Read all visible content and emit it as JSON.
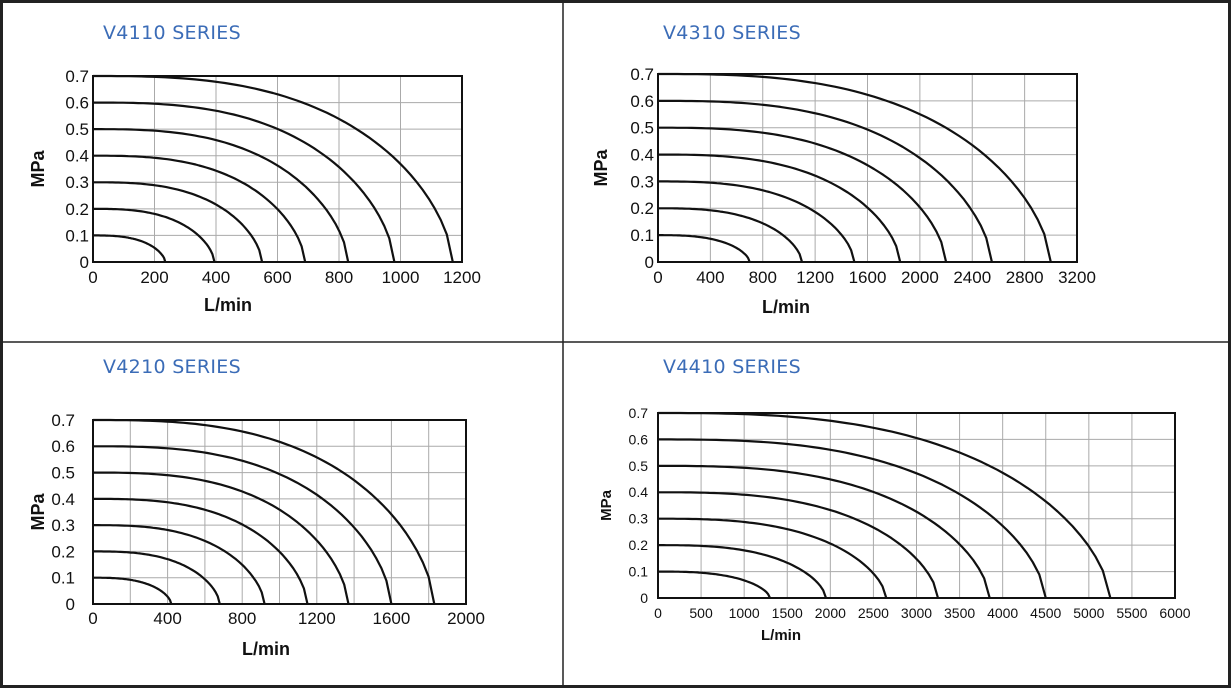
{
  "colors": {
    "border": "#222222",
    "title": "#3b6cb7",
    "grid": "#aaaaaa",
    "curve": "#111111"
  },
  "chart_data": [
    {
      "id": "v4110",
      "type": "line",
      "title": "V4110 SERIES",
      "xlabel": "L/min",
      "ylabel": "MPa",
      "xlim": [
        0,
        1200
      ],
      "ylim": [
        0,
        0.7
      ],
      "x_ticks": [
        0,
        200,
        400,
        600,
        800,
        1000,
        1200
      ],
      "y_ticks": [
        0,
        0.1,
        0.2,
        0.3,
        0.4,
        0.5,
        0.6,
        0.7
      ],
      "x_tick_labels": [
        "0",
        "200",
        "400",
        "600",
        "800",
        "1000",
        "1200"
      ],
      "y_tick_labels": [
        "0",
        "0.1",
        "0.2",
        "0.3",
        "0.4",
        "0.5",
        "0.6",
        "0.7"
      ],
      "grid": true,
      "series": [
        {
          "pressure": 0.1,
          "max_flow": 235
        },
        {
          "pressure": 0.2,
          "max_flow": 395
        },
        {
          "pressure": 0.3,
          "max_flow": 550
        },
        {
          "pressure": 0.4,
          "max_flow": 690
        },
        {
          "pressure": 0.5,
          "max_flow": 830
        },
        {
          "pressure": 0.6,
          "max_flow": 980
        },
        {
          "pressure": 0.7,
          "max_flow": 1170
        }
      ]
    },
    {
      "id": "v4310",
      "type": "line",
      "title": "V4310 SERIES",
      "xlabel": "L/min",
      "ylabel": "MPa",
      "xlim": [
        0,
        3200
      ],
      "ylim": [
        0,
        0.7
      ],
      "x_ticks": [
        0,
        400,
        800,
        1200,
        1600,
        2000,
        2400,
        2800,
        3200
      ],
      "y_ticks": [
        0,
        0.1,
        0.2,
        0.3,
        0.4,
        0.5,
        0.6,
        0.7
      ],
      "x_tick_labels": [
        "0",
        "400",
        "800",
        "1200",
        "1600",
        "2000",
        "2400",
        "2800",
        "3200"
      ],
      "y_tick_labels": [
        "0",
        "0.1",
        "0.2",
        "0.3",
        "0.4",
        "0.5",
        "0.6",
        "0.7"
      ],
      "grid": true,
      "series": [
        {
          "pressure": 0.1,
          "max_flow": 700
        },
        {
          "pressure": 0.2,
          "max_flow": 1100
        },
        {
          "pressure": 0.3,
          "max_flow": 1500
        },
        {
          "pressure": 0.4,
          "max_flow": 1850
        },
        {
          "pressure": 0.5,
          "max_flow": 2200
        },
        {
          "pressure": 0.6,
          "max_flow": 2550
        },
        {
          "pressure": 0.7,
          "max_flow": 3000
        }
      ]
    },
    {
      "id": "v4210",
      "type": "line",
      "title": "V4210 SERIES",
      "xlabel": "L/min",
      "ylabel": "MPa",
      "xlim": [
        0,
        2000
      ],
      "ylim": [
        0,
        0.7
      ],
      "x_ticks": [
        0,
        200,
        400,
        600,
        800,
        1000,
        1200,
        1400,
        1600,
        1800,
        2000
      ],
      "y_ticks": [
        0,
        0.1,
        0.2,
        0.3,
        0.4,
        0.5,
        0.6,
        0.7
      ],
      "x_tick_labels": [
        "0",
        "",
        "400",
        "",
        "800",
        "",
        "1200",
        "",
        "1600",
        "",
        "2000"
      ],
      "y_tick_labels": [
        "0",
        "0.1",
        "0.2",
        "0.3",
        "0.4",
        "0.5",
        "0.6",
        "0.7"
      ],
      "grid": true,
      "series": [
        {
          "pressure": 0.1,
          "max_flow": 420
        },
        {
          "pressure": 0.2,
          "max_flow": 680
        },
        {
          "pressure": 0.3,
          "max_flow": 920
        },
        {
          "pressure": 0.4,
          "max_flow": 1150
        },
        {
          "pressure": 0.5,
          "max_flow": 1370
        },
        {
          "pressure": 0.6,
          "max_flow": 1600
        },
        {
          "pressure": 0.7,
          "max_flow": 1830
        }
      ]
    },
    {
      "id": "v4410",
      "type": "line",
      "title": "V4410 SERIES",
      "xlabel": "L/min",
      "ylabel": "MPa",
      "xlim": [
        0,
        6000
      ],
      "ylim": [
        0,
        0.7
      ],
      "x_ticks": [
        0,
        500,
        1000,
        1500,
        2000,
        2500,
        3000,
        3500,
        4000,
        4500,
        5000,
        5500,
        6000
      ],
      "y_ticks": [
        0,
        0.1,
        0.2,
        0.3,
        0.4,
        0.5,
        0.6,
        0.7
      ],
      "x_tick_labels": [
        "0",
        "500",
        "1000",
        "1500",
        "2000",
        "2500",
        "3000",
        "3500",
        "4000",
        "4500",
        "5000",
        "5500",
        "6000"
      ],
      "y_tick_labels": [
        "0",
        "0.1",
        "0.2",
        "0.3",
        "0.4",
        "0.5",
        "0.6",
        "0.7"
      ],
      "grid": true,
      "series": [
        {
          "pressure": 0.1,
          "max_flow": 1300
        },
        {
          "pressure": 0.2,
          "max_flow": 1950
        },
        {
          "pressure": 0.3,
          "max_flow": 2650
        },
        {
          "pressure": 0.4,
          "max_flow": 3250
        },
        {
          "pressure": 0.5,
          "max_flow": 3850
        },
        {
          "pressure": 0.6,
          "max_flow": 4500
        },
        {
          "pressure": 0.7,
          "max_flow": 5250
        }
      ]
    }
  ]
}
